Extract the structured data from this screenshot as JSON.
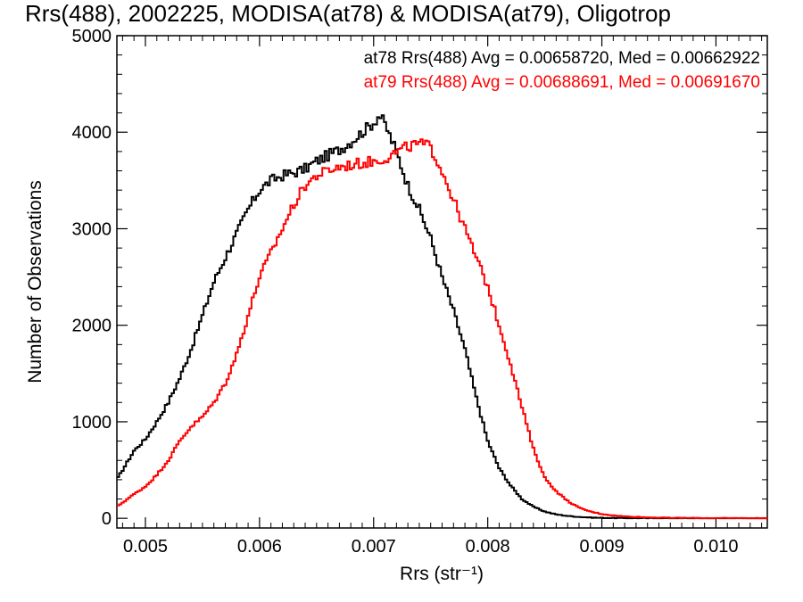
{
  "chart_data": {
    "type": "line",
    "title": "Rrs(488), 2002225, MODISA(at78) & MODISA(at79), Oligotrop",
    "xlabel": "Rrs (str⁻¹)",
    "ylabel": "Number of Observations",
    "xlim": [
      0.00475,
      0.01045
    ],
    "ylim": [
      -100,
      5000
    ],
    "xticks": [
      0.005,
      0.006,
      0.007,
      0.008,
      0.009,
      0.01
    ],
    "xtick_labels": [
      "0.005",
      "0.006",
      "0.007",
      "0.008",
      "0.009",
      "0.010"
    ],
    "yticks": [
      0,
      1000,
      2000,
      3000,
      4000,
      5000
    ],
    "ytick_labels": [
      "0",
      "1000",
      "2000",
      "3000",
      "4000",
      "5000"
    ],
    "grid": false,
    "series": [
      {
        "name": "at78",
        "color": "#000000",
        "label": "at78 Rrs(488) Avg = 0.00658720, Med = 0.00662922",
        "points": [
          [
            0.00475,
            400
          ],
          [
            0.0049,
            700
          ],
          [
            0.005,
            820
          ],
          [
            0.0051,
            1000
          ],
          [
            0.0052,
            1200
          ],
          [
            0.0053,
            1450
          ],
          [
            0.0054,
            1750
          ],
          [
            0.0055,
            2100
          ],
          [
            0.0056,
            2450
          ],
          [
            0.0057,
            2700
          ],
          [
            0.0058,
            2950
          ],
          [
            0.0059,
            3200
          ],
          [
            0.006,
            3400
          ],
          [
            0.0061,
            3500
          ],
          [
            0.0062,
            3550
          ],
          [
            0.0063,
            3580
          ],
          [
            0.0064,
            3620
          ],
          [
            0.0065,
            3700
          ],
          [
            0.0066,
            3760
          ],
          [
            0.0067,
            3820
          ],
          [
            0.0068,
            3900
          ],
          [
            0.0069,
            4000
          ],
          [
            0.007,
            4100
          ],
          [
            0.00705,
            4180
          ],
          [
            0.0071,
            4080
          ],
          [
            0.0072,
            3800
          ],
          [
            0.0073,
            3450
          ],
          [
            0.0074,
            3200
          ],
          [
            0.0075,
            2900
          ],
          [
            0.0076,
            2500
          ],
          [
            0.0077,
            2150
          ],
          [
            0.0078,
            1750
          ],
          [
            0.0079,
            1250
          ],
          [
            0.008,
            800
          ],
          [
            0.0081,
            520
          ],
          [
            0.0082,
            340
          ],
          [
            0.0083,
            200
          ],
          [
            0.0084,
            120
          ],
          [
            0.0085,
            70
          ],
          [
            0.0086,
            40
          ],
          [
            0.0087,
            25
          ],
          [
            0.0088,
            15
          ],
          [
            0.0089,
            8
          ],
          [
            0.009,
            5
          ],
          [
            0.0092,
            2
          ],
          [
            0.0095,
            1
          ],
          [
            0.01,
            0
          ],
          [
            0.01045,
            0
          ]
        ]
      },
      {
        "name": "at79",
        "color": "#ff0000",
        "label": "at79 Rrs(488) Avg = 0.00688691, Med = 0.00691670",
        "points": [
          [
            0.00475,
            120
          ],
          [
            0.0049,
            250
          ],
          [
            0.005,
            330
          ],
          [
            0.0051,
            450
          ],
          [
            0.0052,
            600
          ],
          [
            0.0053,
            800
          ],
          [
            0.0054,
            950
          ],
          [
            0.0055,
            1050
          ],
          [
            0.0056,
            1200
          ],
          [
            0.0057,
            1400
          ],
          [
            0.0058,
            1700
          ],
          [
            0.0059,
            2100
          ],
          [
            0.006,
            2500
          ],
          [
            0.0061,
            2750
          ],
          [
            0.0062,
            3000
          ],
          [
            0.0063,
            3250
          ],
          [
            0.0064,
            3450
          ],
          [
            0.0065,
            3550
          ],
          [
            0.0066,
            3600
          ],
          [
            0.0067,
            3640
          ],
          [
            0.0068,
            3660
          ],
          [
            0.0069,
            3680
          ],
          [
            0.007,
            3700
          ],
          [
            0.0071,
            3730
          ],
          [
            0.0072,
            3790
          ],
          [
            0.0073,
            3850
          ],
          [
            0.0074,
            3880
          ],
          [
            0.0075,
            3850
          ],
          [
            0.0076,
            3600
          ],
          [
            0.0077,
            3300
          ],
          [
            0.0078,
            3000
          ],
          [
            0.0079,
            2700
          ],
          [
            0.008,
            2400
          ],
          [
            0.0081,
            2000
          ],
          [
            0.0082,
            1600
          ],
          [
            0.0083,
            1150
          ],
          [
            0.0084,
            720
          ],
          [
            0.0085,
            420
          ],
          [
            0.0086,
            280
          ],
          [
            0.0087,
            180
          ],
          [
            0.0088,
            110
          ],
          [
            0.0089,
            70
          ],
          [
            0.009,
            45
          ],
          [
            0.0091,
            30
          ],
          [
            0.0092,
            20
          ],
          [
            0.0094,
            10
          ],
          [
            0.0096,
            5
          ],
          [
            0.01,
            2
          ],
          [
            0.01045,
            1
          ]
        ]
      }
    ]
  }
}
